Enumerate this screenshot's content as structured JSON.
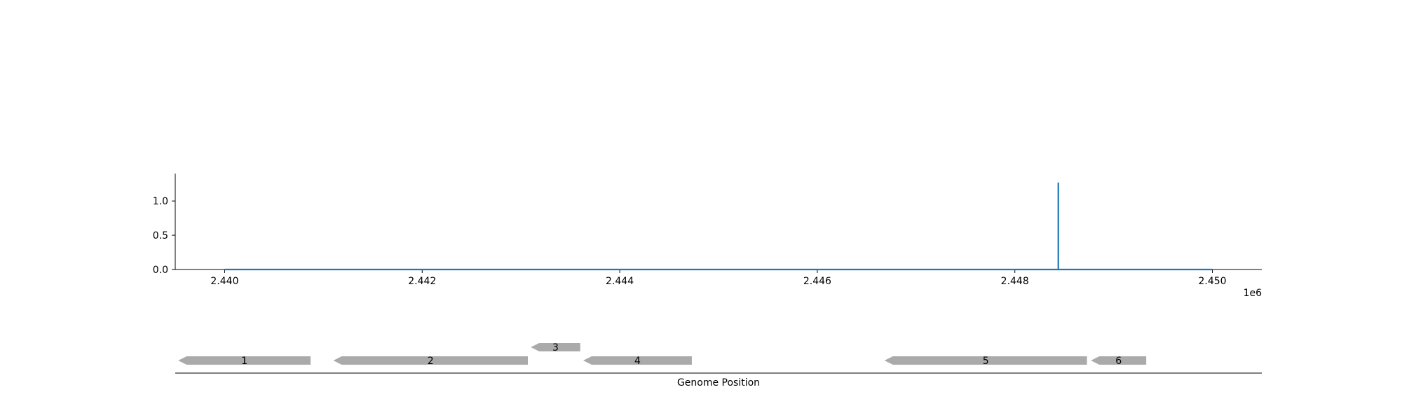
{
  "chart_data": [
    {
      "type": "line",
      "title": "",
      "xlabel": "",
      "ylabel": "",
      "x_offset_label": "1e6",
      "xlim": [
        2439500,
        2450500
      ],
      "ylim": [
        0,
        1.4
      ],
      "x_ticks": [
        2440000,
        2442000,
        2444000,
        2446000,
        2448000,
        2450000
      ],
      "x_tick_labels": [
        "2.440",
        "2.442",
        "2.444",
        "2.446",
        "2.448",
        "2.450"
      ],
      "y_ticks": [
        0.0,
        0.5,
        1.0
      ],
      "y_tick_labels": [
        "0.0",
        "0.5",
        "1.0"
      ],
      "grid": false,
      "color": "#1f77b4",
      "series": [
        {
          "x": [
            2440000,
            2448440,
            2448440,
            2448440,
            2450000
          ],
          "y": [
            0,
            0,
            1.27,
            0,
            0
          ]
        }
      ]
    },
    {
      "type": "gene_track",
      "xlabel": "Genome Position",
      "xlim": [
        2439500,
        2450500
      ],
      "color": "#aaaaaa",
      "genes": [
        {
          "label": "1",
          "start": 2439530,
          "end": 2440870,
          "strand": "-",
          "row": 0
        },
        {
          "label": "2",
          "start": 2441100,
          "end": 2443070,
          "strand": "-",
          "row": 0
        },
        {
          "label": "3",
          "start": 2443100,
          "end": 2443600,
          "strand": "-",
          "row": 1
        },
        {
          "label": "4",
          "start": 2443630,
          "end": 2444730,
          "strand": "-",
          "row": 0
        },
        {
          "label": "5",
          "start": 2446680,
          "end": 2448730,
          "strand": "-",
          "row": 0
        },
        {
          "label": "6",
          "start": 2448770,
          "end": 2449330,
          "strand": "-",
          "row": 0
        }
      ]
    }
  ]
}
